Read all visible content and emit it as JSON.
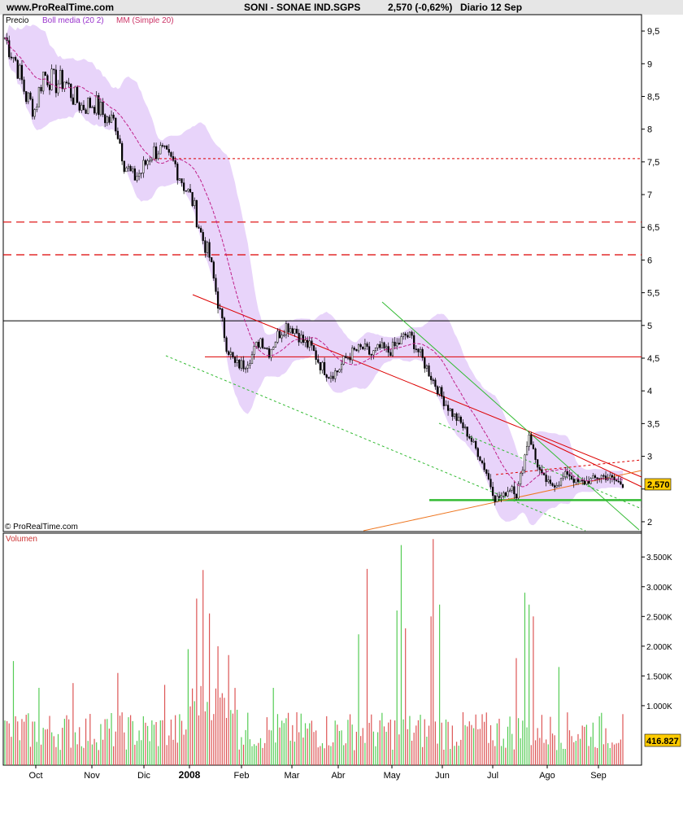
{
  "header": {
    "site": "www.ProRealTime.com",
    "instrument": "SONI - SONAE IND.SGPS",
    "quote": "2,570 (-0,62%)",
    "period": "Diario  12 Sep"
  },
  "price_panel": {
    "legend": {
      "price": "Precio",
      "boll": "Boll media (20 2)",
      "mm": "MM (Simple 20)"
    },
    "copyright": "© ProRealTime.com",
    "last_price_label": "2,570"
  },
  "volume_panel": {
    "title": "Volumen",
    "last_volume_label": "416.827"
  },
  "colors": {
    "background": "#ffffff",
    "panel_bg": "#ffffff",
    "axis": "#000000",
    "bollinger_band": "#e8d4fa",
    "mm_line": "#c0208a",
    "candle_body": "#000000",
    "volume_up": "#55cc55",
    "volume_down": "#dd5555",
    "resistance": "#dd0000",
    "support_green": "#33bb33",
    "trend_orange": "#ee7722",
    "label_box": "#ffcc00"
  },
  "chart_data": [
    {
      "type": "line",
      "title": "SONI - SONAE IND.SGPS",
      "description": "Daily price with Bollinger bands (20,2) and simple 20 moving average",
      "x_axis_labels": [
        "Oct",
        "Nov",
        "Dic",
        "2008",
        "Feb",
        "Mar",
        "Abr",
        "May",
        "Jun",
        "Jul",
        "Ago",
        "Sep"
      ],
      "ylim": [
        1.85,
        9.75
      ],
      "y_ticks": [
        2,
        2.5,
        3,
        3.5,
        4,
        4.5,
        5,
        5.5,
        6,
        6.5,
        7,
        7.5,
        8,
        8.5,
        9,
        9.5
      ],
      "y_tick_labels": [
        "2",
        "",
        "3",
        "3,5",
        "4",
        "4,5",
        "5",
        "5,5",
        "6",
        "6,5",
        "7",
        "7,5",
        "8",
        "8,5",
        "9",
        "9,5"
      ],
      "price_path": [
        [
          0,
          9.4
        ],
        [
          5,
          9.05
        ],
        [
          10,
          8.5
        ],
        [
          14,
          8.3
        ],
        [
          18,
          8.85
        ],
        [
          24,
          8.7
        ],
        [
          28,
          8.75
        ],
        [
          32,
          8.5
        ],
        [
          36,
          8.35
        ],
        [
          42,
          8.4
        ],
        [
          48,
          8.15
        ],
        [
          52,
          8.1
        ],
        [
          56,
          7.5
        ],
        [
          60,
          7.25
        ],
        [
          64,
          7.35
        ],
        [
          68,
          7.6
        ],
        [
          72,
          7.7
        ],
        [
          76,
          7.55
        ],
        [
          80,
          7.45
        ],
        [
          84,
          7.15
        ],
        [
          88,
          6.9
        ],
        [
          92,
          6.4
        ],
        [
          96,
          6.05
        ],
        [
          100,
          5.35
        ],
        [
          104,
          4.7
        ],
        [
          108,
          4.4
        ],
        [
          112,
          4.4
        ],
        [
          116,
          4.55
        ],
        [
          120,
          4.8
        ],
        [
          124,
          4.6
        ],
        [
          128,
          4.85
        ],
        [
          132,
          5.0
        ],
        [
          136,
          4.95
        ],
        [
          140,
          4.75
        ],
        [
          144,
          4.65
        ],
        [
          148,
          4.4
        ],
        [
          152,
          4.25
        ],
        [
          156,
          4.3
        ],
        [
          160,
          4.5
        ],
        [
          164,
          4.6
        ],
        [
          168,
          4.65
        ],
        [
          172,
          4.55
        ],
        [
          176,
          4.65
        ],
        [
          180,
          4.6
        ],
        [
          184,
          4.7
        ],
        [
          188,
          4.85
        ],
        [
          191,
          4.8
        ],
        [
          194,
          4.6
        ],
        [
          198,
          4.35
        ],
        [
          202,
          4.1
        ],
        [
          206,
          3.85
        ],
        [
          210,
          3.65
        ],
        [
          214,
          3.5
        ],
        [
          218,
          3.3
        ],
        [
          222,
          3.05
        ],
        [
          226,
          2.75
        ],
        [
          230,
          2.35
        ],
        [
          234,
          2.4
        ],
        [
          238,
          2.55
        ],
        [
          240,
          2.4
        ],
        [
          243,
          2.85
        ],
        [
          246,
          3.35
        ],
        [
          249,
          2.95
        ],
        [
          252,
          2.7
        ],
        [
          256,
          2.55
        ],
        [
          260,
          2.6
        ],
        [
          264,
          2.75
        ],
        [
          268,
          2.6
        ],
        [
          272,
          2.6
        ],
        [
          276,
          2.65
        ],
        [
          280,
          2.7
        ],
        [
          284,
          2.67
        ],
        [
          288,
          2.6
        ],
        [
          290,
          2.57
        ]
      ],
      "levels": {
        "black_horizontal": 5.07,
        "red_solid_horizontal": 4.52,
        "red_dashed": [
          6.58,
          6.08
        ],
        "red_dotted": 7.55,
        "green_support": 2.33
      }
    },
    {
      "type": "bar",
      "title": "Volumen",
      "ylim": [
        0,
        3900000
      ],
      "y_ticks": [
        1000000,
        1500000,
        2000000,
        2500000,
        3000000,
        3500000
      ],
      "y_tick_labels": [
        "1.000K",
        "1.500K",
        "2.000K",
        "2.500K",
        "3.000K",
        "3.500K"
      ],
      "last_value": 416827,
      "spikes": [
        {
          "i": 4,
          "v": 1750000
        },
        {
          "i": 16,
          "v": 1300000
        },
        {
          "i": 32,
          "v": 1380000
        },
        {
          "i": 53,
          "v": 1550000
        },
        {
          "i": 75,
          "v": 1350000
        },
        {
          "i": 86,
          "v": 1950000
        },
        {
          "i": 90,
          "v": 2800000
        },
        {
          "i": 93,
          "v": 3280000
        },
        {
          "i": 96,
          "v": 2550000
        },
        {
          "i": 100,
          "v": 2000000
        },
        {
          "i": 105,
          "v": 1850000
        },
        {
          "i": 126,
          "v": 1300000
        },
        {
          "i": 166,
          "v": 2200000
        },
        {
          "i": 170,
          "v": 3300000
        },
        {
          "i": 184,
          "v": 2600000
        },
        {
          "i": 186,
          "v": 3700000
        },
        {
          "i": 188,
          "v": 2300000
        },
        {
          "i": 200,
          "v": 2500000
        },
        {
          "i": 201,
          "v": 3800000
        },
        {
          "i": 204,
          "v": 2700000
        },
        {
          "i": 240,
          "v": 1800000
        },
        {
          "i": 244,
          "v": 2900000
        },
        {
          "i": 246,
          "v": 2700000
        },
        {
          "i": 248,
          "v": 2500000
        },
        {
          "i": 260,
          "v": 1650000
        }
      ]
    }
  ]
}
